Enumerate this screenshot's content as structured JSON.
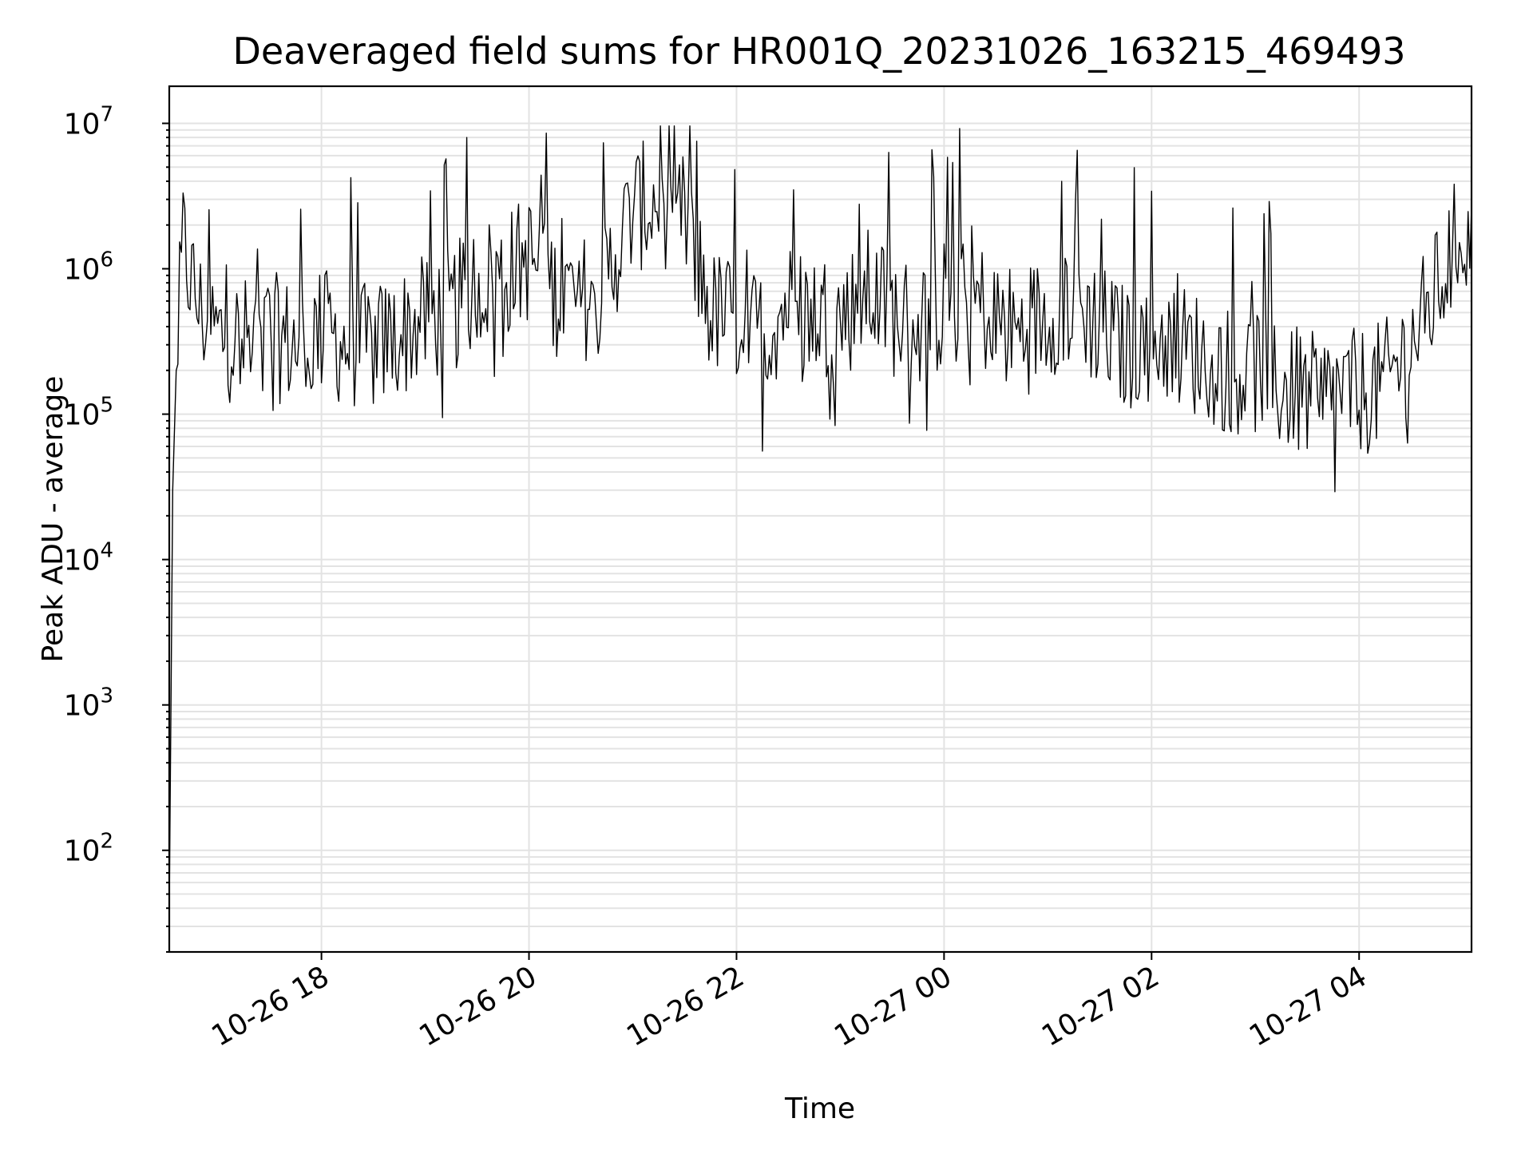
{
  "chart_data": {
    "type": "line",
    "title": "Deaveraged field sums for HR001Q_20231026_163215_469493",
    "xlabel": "Time",
    "ylabel": "Peak ADU - average",
    "yscale": "log",
    "ylim": [
      20,
      18000000
    ],
    "xlim": [
      "2023-10-26 16:32",
      "2023-10-27 05:05"
    ],
    "grid": true,
    "line_color": "#000000",
    "x_ticks": [
      {
        "value": "2023-10-26 18:00",
        "label": "10-26 18"
      },
      {
        "value": "2023-10-26 20:00",
        "label": "10-26 20"
      },
      {
        "value": "2023-10-26 22:00",
        "label": "10-26 22"
      },
      {
        "value": "2023-10-27 00:00",
        "label": "10-27 00"
      },
      {
        "value": "2023-10-27 02:00",
        "label": "10-27 02"
      },
      {
        "value": "2023-10-27 04:00",
        "label": "10-27 04"
      }
    ],
    "y_ticks": [
      {
        "value": 100,
        "base": "10",
        "exp": "2"
      },
      {
        "value": 1000,
        "base": "10",
        "exp": "3"
      },
      {
        "value": 10000,
        "base": "10",
        "exp": "4"
      },
      {
        "value": 100000,
        "base": "10",
        "exp": "5"
      },
      {
        "value": 1000000,
        "base": "10",
        "exp": "6"
      },
      {
        "value": 10000000,
        "base": "10",
        "exp": "7"
      }
    ],
    "series": [
      {
        "x": [
          "2023-10-26 16:32",
          "2023-10-26 16:34",
          "2023-10-26 16:36",
          "2023-10-26 16:40",
          "2023-10-26 16:45",
          "2023-10-26 16:50",
          "2023-10-26 17:00",
          "2023-10-26 17:15",
          "2023-10-26 17:30",
          "2023-10-26 17:45",
          "2023-10-26 18:00",
          "2023-10-26 18:15",
          "2023-10-26 18:30",
          "2023-10-26 18:45",
          "2023-10-26 19:00",
          "2023-10-26 19:15",
          "2023-10-26 19:30",
          "2023-10-26 19:45",
          "2023-10-26 20:00",
          "2023-10-26 20:15",
          "2023-10-26 20:30",
          "2023-10-26 20:45",
          "2023-10-26 21:00",
          "2023-10-26 21:15",
          "2023-10-26 21:30",
          "2023-10-26 21:45",
          "2023-10-26 22:00",
          "2023-10-26 22:15",
          "2023-10-26 22:30",
          "2023-10-26 22:45",
          "2023-10-26 23:00",
          "2023-10-26 23:15",
          "2023-10-26 23:30",
          "2023-10-26 23:45",
          "2023-10-27 00:00",
          "2023-10-27 00:15",
          "2023-10-27 00:30",
          "2023-10-27 00:45",
          "2023-10-27 01:00",
          "2023-10-27 01:15",
          "2023-10-27 01:30",
          "2023-10-27 01:45",
          "2023-10-27 02:00",
          "2023-10-27 02:15",
          "2023-10-27 02:30",
          "2023-10-27 02:45",
          "2023-10-27 03:00",
          "2023-10-27 03:15",
          "2023-10-27 03:30",
          "2023-10-27 03:45",
          "2023-10-27 04:00",
          "2023-10-27 04:15",
          "2023-10-27 04:30",
          "2023-10-27 04:45",
          "2023-10-27 05:00",
          "2023-10-27 05:05"
        ],
        "y": [
          40,
          30000,
          200000,
          1500000,
          800000,
          500000,
          350000,
          320000,
          350000,
          300000,
          380000,
          300000,
          280000,
          350000,
          450000,
          500000,
          800000,
          900000,
          1200000,
          700000,
          600000,
          900000,
          2500000,
          3000000,
          2200000,
          500000,
          450000,
          350000,
          600000,
          500000,
          450000,
          700000,
          500000,
          400000,
          550000,
          650000,
          450000,
          350000,
          500000,
          600000,
          400000,
          280000,
          350000,
          300000,
          250000,
          200000,
          200000,
          150000,
          130000,
          140000,
          140000,
          160000,
          300000,
          700000,
          2000000,
          1200000
        ]
      }
    ]
  }
}
